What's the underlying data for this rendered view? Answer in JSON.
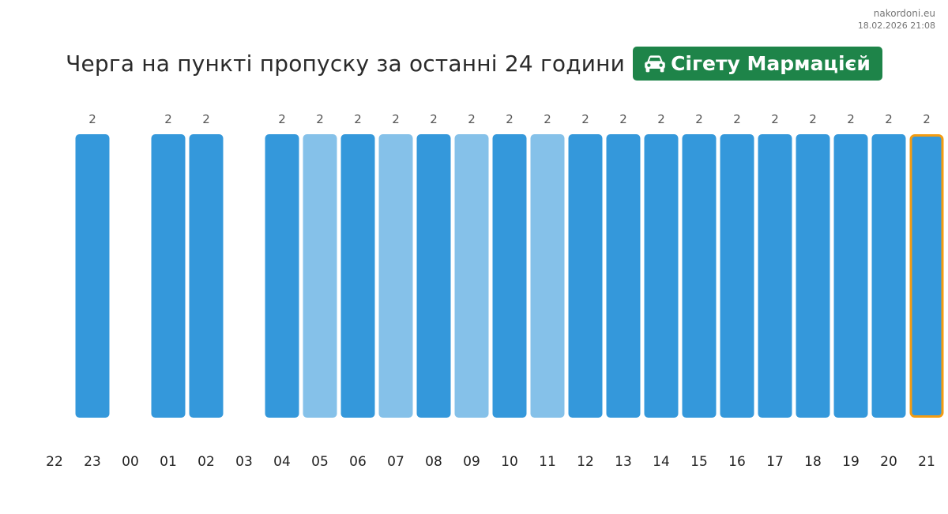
{
  "source": {
    "site": "nakordoni.eu",
    "timestamp": "18.02.2026 21:08"
  },
  "header": {
    "title": "Черга на пункті пропуску за останні 24 години",
    "checkpoint": "Сігету Мармацієй",
    "checkpoint_icon": "car-icon",
    "badge_color": "#1e8449"
  },
  "colors": {
    "bar_dark": "#3498db",
    "bar_light": "#85c1e9",
    "highlight_border": "#f39c12"
  },
  "chart_data": {
    "type": "bar",
    "title": "",
    "xlabel": "",
    "ylabel": "",
    "categories": [
      "22",
      "23",
      "00",
      "01",
      "02",
      "03",
      "04",
      "05",
      "06",
      "07",
      "08",
      "09",
      "10",
      "11",
      "12",
      "13",
      "14",
      "15",
      "16",
      "17",
      "18",
      "19",
      "20",
      "21"
    ],
    "values": [
      null,
      2,
      null,
      2,
      2,
      null,
      2,
      2,
      2,
      2,
      2,
      2,
      2,
      2,
      2,
      2,
      2,
      2,
      2,
      2,
      2,
      2,
      2,
      2
    ],
    "shade": [
      "",
      "dark",
      "",
      "dark",
      "dark",
      "",
      "dark",
      "light",
      "dark",
      "light",
      "dark",
      "light",
      "dark",
      "light",
      "dark",
      "dark",
      "dark",
      "dark",
      "dark",
      "dark",
      "dark",
      "dark",
      "dark",
      "dark"
    ],
    "highlighted": "21",
    "ylim": [
      0,
      2
    ],
    "grid": false,
    "legend": "none"
  }
}
